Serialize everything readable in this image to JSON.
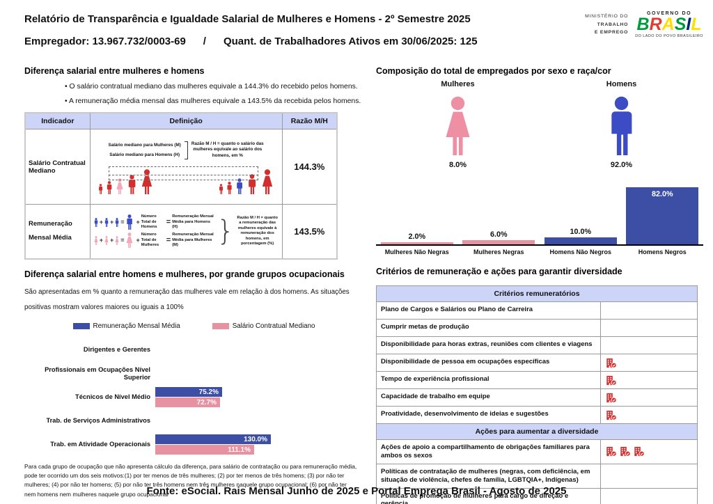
{
  "page": {
    "title_line1": "Relatório de Transparência e Igualdade Salarial de Mulheres e Homens - 2º Semestre 2025",
    "title_line2": "Empregador: 13.967.732/0003-69      /      Quant. de Trabalhadores Ativos em 30/06/2025: 125",
    "footer": "Fonte: eSocial. Rais Mensal Junho de 2025 e Portal Emprega Brasil - Agosto de 2025"
  },
  "logo": {
    "ministry_line1": "MINISTÉRIO DO",
    "ministry_line2": "TRABALHO",
    "ministry_line3": "E EMPREGO",
    "gov_top": "GOVERNO DO",
    "brand_letters": [
      {
        "ch": "B",
        "color": "#009b3a"
      },
      {
        "ch": "R",
        "color": "#e03c31"
      },
      {
        "ch": "A",
        "color": "#ffdf00"
      },
      {
        "ch": "S",
        "color": "#009b3a"
      },
      {
        "ch": "I",
        "color": "#002776"
      },
      {
        "ch": "L",
        "color": "#ffdf00"
      }
    ],
    "gov_bottom": "DO LADO DO POVO BRASILEIRO"
  },
  "colors": {
    "blue": "#3d4fa5",
    "pink": "#e891a1",
    "red": "#d32d2d",
    "light_pink_figure": "#f2a9bb",
    "figure_blue": "#3b4cc4",
    "lavender": "#ccd4f8"
  },
  "salary_gap": {
    "title": "Diferença salarial entre mulheres e homens",
    "bullets": [
      "O salário contratual mediano das mulheres equivale a 144.3% do recebido pelos homens.",
      "A remuneração média mensal das mulheres equivale a 143.5% da recebida pelos homens."
    ],
    "table": {
      "headers": [
        "Indicador",
        "Definição",
        "Razão M/H"
      ],
      "row1": {
        "indicator": "Salário Contratual Mediano",
        "def_label1": "Salário mediano para Mulheres (M)",
        "def_label2": "Salário mediano para Homens (H)",
        "def_note": "Razão M / H = quanto o salário das mulheres equivale ao salário dos homens, em %",
        "ratio": "144.3%"
      },
      "row2": {
        "indicator": "Remuneração Mensal Média",
        "men_total": "Número Total de Homens",
        "men_result": "Remuneração Mensal Média para Homens (H)",
        "women_total": "Número Total de Mulheres",
        "women_result": "Remuneração Mensal Média para Mulheres (M)",
        "def_note": "Razão M / H = quanto a remuneração das mulheres equivale à remuneração dos homens, em porcentagem (%)",
        "ratio": "143.5%"
      }
    }
  },
  "occupational": {
    "title": "Diferença salarial entre homens e mulheres, por grande grupos ocupacionais",
    "subtitle": "São apresentadas em % quanto a remuneração das mulheres vale em relação à dos homens. As situações positivas mostram valores maiores ou iguais a 100%",
    "footnote": "Para cada grupo de ocupação que não apresenta cálculo da diferença, para salário de contratação ou para remuneração média, pode ter ocorrido um dos seis motivos:(1) por ter menos de três mulheres; (2) por ter menos de três homens; (3) por não ter mulheres; (4) por não ter homens; (5) por não ter três homens nem três mulheres naquele grupo ocupacional; (6) por não ter nem homens nem mulheres naquele grupo ocupacional"
  },
  "composition": {
    "title": "Composição do total de empregados por sexo e raça/cor",
    "groups": [
      {
        "label": "Mulheres",
        "value": "8.0%"
      },
      {
        "label": "Homens",
        "value": "92.0%"
      }
    ]
  },
  "criteria": {
    "title": "Critérios de remuneração e ações para garantir diversidade",
    "sections": [
      {
        "header": "Critérios remuneratórios",
        "rows": [
          {
            "label": "Plano de Cargos e Salários ou Plano de Carreira",
            "icons": 0
          },
          {
            "label": "Cumprir metas de produção",
            "icons": 0
          },
          {
            "label": "Disponibilidade para horas extras, reuniões com clientes e viagens",
            "icons": 0
          },
          {
            "label": "Disponibilidade de pessoa em ocupações específicas",
            "icons": 1
          },
          {
            "label": "Tempo de experiência profissional",
            "icons": 1
          },
          {
            "label": "Capacidade de trabalho em equipe",
            "icons": 1
          },
          {
            "label": "Proatividade, desenvolvimento de ideias e sugestões",
            "icons": 1
          }
        ]
      },
      {
        "header": "Ações para aumentar a diversidade",
        "rows": [
          {
            "label": "Ações de apoio a compartilhamento de obrigações familiares para ambos os sexos",
            "icons": 3
          },
          {
            "label": "Políticas de contratação de mulheres (negras, com deficiência, em situação de violência, chefes de família, LGBTQIA+, Indígenas)",
            "icons": 0
          },
          {
            "label": "Políticas de promoção de mulheres para cargo de direção e gerência",
            "icons": 0
          }
        ]
      }
    ]
  },
  "chart_data": [
    {
      "type": "bar",
      "orientation": "horizontal",
      "title": "Diferença salarial entre homens e mulheres, por grande grupos ocupacionais",
      "categories": [
        "Dirigentes e Gerentes",
        "Profissionais em Ocupações Nível Superior",
        "Técnicos de Nível Médio",
        "Trab. de Serviços Administrativos",
        "Trab. em Atividade Operacionais"
      ],
      "series": [
        {
          "name": "Remuneração Mensal Média",
          "color": "#3d4fa5",
          "values": [
            null,
            null,
            75.2,
            null,
            130.0
          ]
        },
        {
          "name": "Salário Contratual Mediano",
          "color": "#e891a1",
          "values": [
            null,
            null,
            72.7,
            null,
            111.1
          ]
        }
      ],
      "value_suffix": "%",
      "legend_position": "top",
      "grid": false
    },
    {
      "type": "bar",
      "orientation": "vertical",
      "title": "Composição do total de empregados por sexo e raça/cor",
      "categories": [
        "Mulheres Não Negras",
        "Mulheres Negras",
        "Homens Não Negros",
        "Homens Negros"
      ],
      "values": [
        2.0,
        6.0,
        10.0,
        82.0
      ],
      "colors": [
        "#e891a1",
        "#e891a1",
        "#3d4fa5",
        "#3d4fa5"
      ],
      "value_suffix": "%",
      "ylim": [
        0,
        100
      ],
      "grid": false
    }
  ]
}
